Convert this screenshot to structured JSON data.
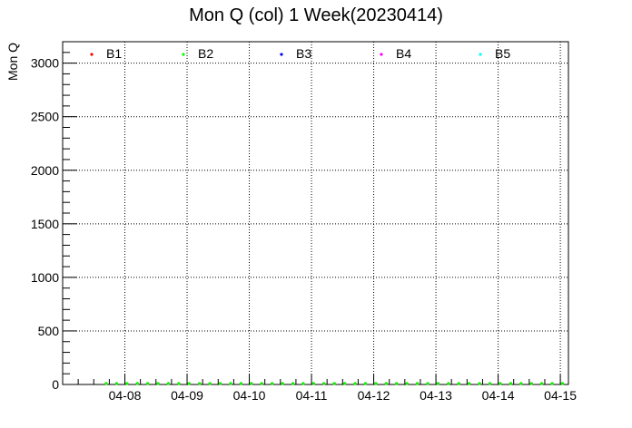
{
  "chart_data": {
    "type": "scatter",
    "title": "Mon Q (col) 1 Week(20230414)",
    "xlabel": "",
    "ylabel": "Mon Q",
    "x_tick_labels": [
      "04-08",
      "04-09",
      "04-10",
      "04-11",
      "04-12",
      "04-13",
      "04-14",
      "04-15"
    ],
    "y_tick_labels": [
      "0",
      "500",
      "1000",
      "1500",
      "2000",
      "2500",
      "3000"
    ],
    "x_tick_days": [
      8,
      9,
      10,
      11,
      12,
      13,
      14,
      15
    ],
    "y_ticks": [
      0,
      500,
      1000,
      1500,
      2000,
      2500,
      3000
    ],
    "ylim": [
      0,
      3200
    ],
    "xlim_days": [
      7.0,
      15.13
    ],
    "grid": true,
    "legend_position": "top",
    "x_data_start_day": 7.7,
    "x_data_step_day": 0.1667,
    "series": [
      {
        "name": "B1",
        "color": "#ff0000",
        "values": [
          0,
          0,
          0,
          0,
          0,
          0,
          0,
          0,
          0,
          0,
          0,
          0,
          0,
          0,
          0,
          0,
          0,
          0,
          0,
          0,
          0,
          0,
          0,
          0,
          0,
          0,
          0,
          0,
          0,
          0,
          0,
          0,
          0,
          0,
          0,
          0,
          0,
          0,
          0,
          0,
          0,
          0,
          0,
          0,
          0
        ]
      },
      {
        "name": "B2",
        "color": "#00ff00",
        "values": [
          0,
          0,
          0,
          0,
          0,
          0,
          0,
          0,
          0,
          0,
          0,
          0,
          0,
          0,
          0,
          0,
          0,
          0,
          0,
          0,
          0,
          0,
          0,
          0,
          0,
          0,
          0,
          0,
          0,
          0,
          0,
          0,
          0,
          0,
          0,
          0,
          0,
          0,
          0,
          0,
          0,
          0,
          0,
          0,
          0
        ]
      },
      {
        "name": "B3",
        "color": "#0000ff",
        "values": []
      },
      {
        "name": "B4",
        "color": "#ff00ff",
        "values": []
      },
      {
        "name": "B5",
        "color": "#00ffff",
        "values": []
      }
    ]
  }
}
